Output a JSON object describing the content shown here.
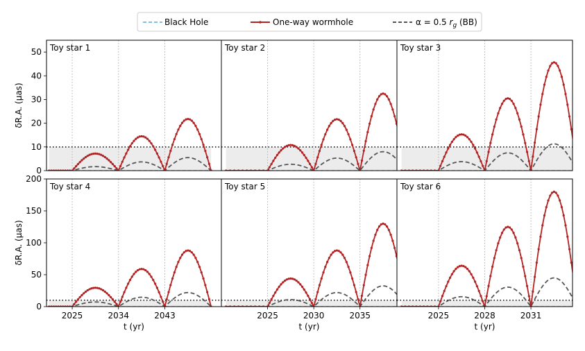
{
  "legend": {
    "black_hole": "Black Hole",
    "wormhole": "One-way wormhole",
    "bb": "α = 0.5 r_g (BB)",
    "bb_prefix": "α = 0.5 ",
    "bb_italic": "r",
    "bb_sub": "g",
    "bb_suffix": " (BB)"
  },
  "colors": {
    "black_hole": "#5fa8d3",
    "wormhole": "#b22222",
    "bb": "#555555",
    "shade": "#ececec",
    "threshold": "#000000",
    "vline": "#b0b0b0"
  },
  "chart_data": {
    "type": "line",
    "xlabel": "t (yr)",
    "threshold_y": 10,
    "rows": [
      {
        "ylabel": "δR.A. (μas)",
        "ylim": [
          0,
          55
        ],
        "yticks": [
          0,
          10,
          20,
          30,
          40,
          50
        ]
      },
      {
        "ylabel": "δR.A. (μas)",
        "ylim": [
          0,
          200
        ],
        "yticks": [
          0,
          50,
          100,
          150,
          200
        ]
      }
    ],
    "panels": [
      {
        "title": "Toy star 1",
        "row": 0,
        "period": 9,
        "xlim": [
          2020,
          2054
        ],
        "start": 2020.5,
        "t0": 2025,
        "t_end": 2052,
        "xticks": [
          2025,
          2034,
          2043
        ],
        "peaks_wh": [
          7.2,
          14.5,
          21.8
        ],
        "peaks_bb": [
          1.7,
          3.7,
          5.5
        ]
      },
      {
        "title": "Toy star 2",
        "row": 0,
        "period": 5,
        "xlim": [
          2020,
          2039
        ],
        "start": 2020.5,
        "t0": 2025,
        "t_end": 2040,
        "xticks": [
          2025,
          2030,
          2035
        ],
        "peaks_wh": [
          10.8,
          21.7,
          32.5
        ],
        "peaks_bb": [
          2.7,
          5.3,
          8.0
        ]
      },
      {
        "title": "Toy star 3",
        "row": 0,
        "period": 3,
        "xlim": [
          2022.3,
          2033.7
        ],
        "start": 2022.6,
        "t0": 2025,
        "t_end": 2034,
        "xticks": [
          2025,
          2028,
          2031
        ],
        "peaks_wh": [
          15.3,
          30.5,
          45.7
        ],
        "peaks_bb": [
          3.8,
          7.5,
          11.3
        ]
      },
      {
        "title": "Toy star 4",
        "row": 1,
        "period": 9,
        "xlim": [
          2020,
          2054
        ],
        "start": 2020.5,
        "t0": 2025,
        "t_end": 2052,
        "xticks": [
          2025,
          2034,
          2043
        ],
        "peaks_wh": [
          29.5,
          59.0,
          88.0
        ],
        "peaks_bb": [
          7.3,
          14.7,
          22.0
        ]
      },
      {
        "title": "Toy star 5",
        "row": 1,
        "period": 5,
        "xlim": [
          2020,
          2039
        ],
        "start": 2020.5,
        "t0": 2025,
        "t_end": 2040,
        "xticks": [
          2025,
          2030,
          2035
        ],
        "peaks_wh": [
          44.0,
          88.0,
          130.0
        ],
        "peaks_bb": [
          11.0,
          22.0,
          32.5
        ]
      },
      {
        "title": "Toy star 6",
        "row": 1,
        "period": 3,
        "xlim": [
          2022.3,
          2033.7
        ],
        "start": 2022.6,
        "t0": 2025,
        "t_end": 2034,
        "xticks": [
          2025,
          2028,
          2031
        ],
        "peaks_wh": [
          64.0,
          125.0,
          180.0
        ],
        "peaks_bb": [
          15.5,
          30.5,
          45.0
        ]
      }
    ]
  }
}
